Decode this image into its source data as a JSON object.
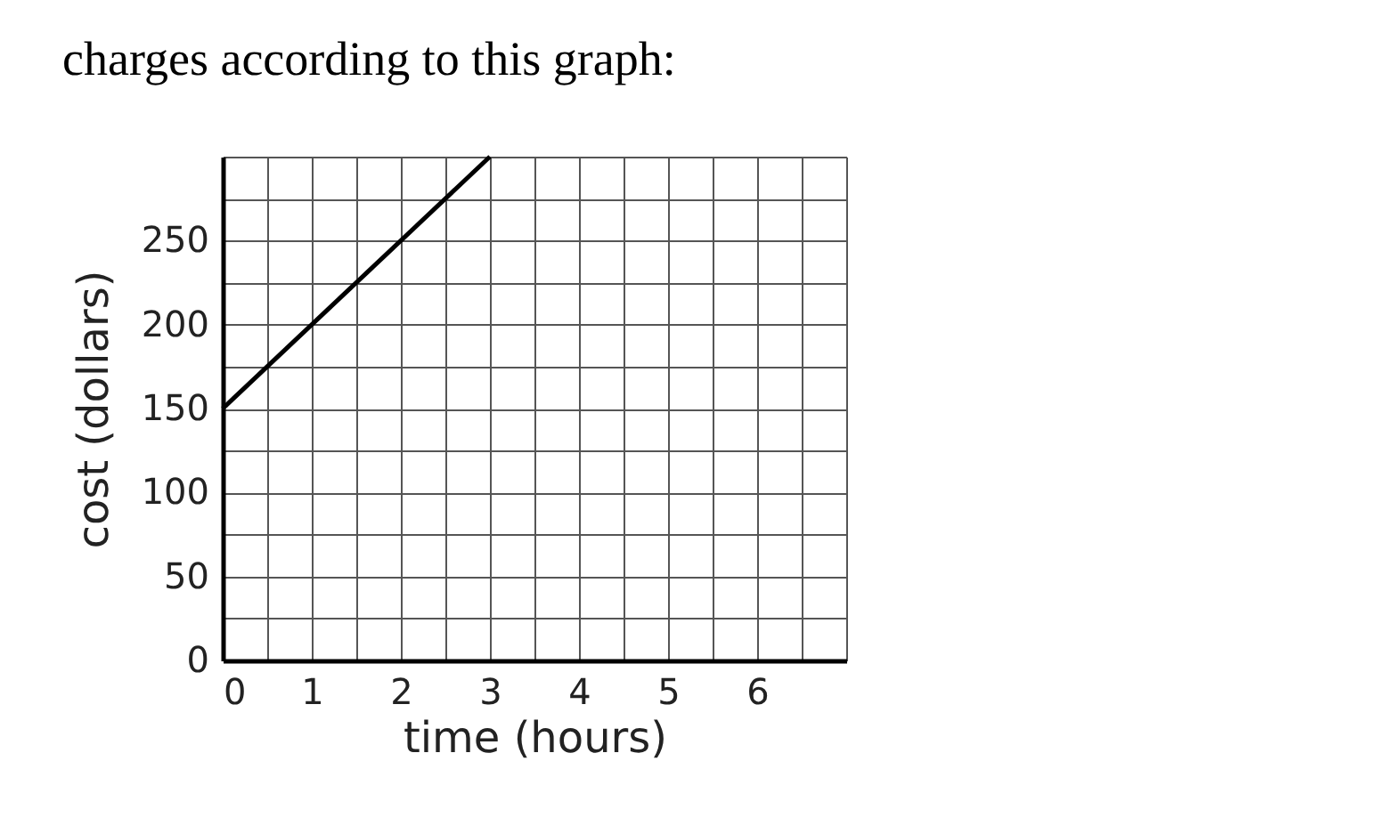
{
  "chart_data": {
    "type": "line",
    "title": "charges according to this graph:",
    "xlabel": "time (hours)",
    "ylabel": "cost (dollars)",
    "x": [
      0,
      3
    ],
    "values": [
      150,
      300
    ],
    "color": "#000000",
    "xlim": [
      0,
      7
    ],
    "ylim": [
      0,
      300
    ],
    "xticks": [
      0,
      {
        "value": 0.5,
        "label": null
      },
      1,
      {
        "value": 1.5,
        "label": null
      },
      2,
      {
        "value": 2.5,
        "label": null
      },
      3,
      {
        "value": 3.5,
        "label": null
      },
      4,
      {
        "value": 4.5,
        "label": null
      },
      5,
      {
        "value": 5.5,
        "label": null
      },
      6,
      {
        "value": 6.5,
        "label": null
      },
      {
        "value": 7,
        "label": null
      }
    ],
    "yticks": [
      0,
      {
        "value": 25,
        "label": null
      },
      50,
      {
        "value": 75,
        "label": null
      },
      100,
      {
        "value": 125,
        "label": null
      },
      150,
      {
        "value": 175,
        "label": null
      },
      200,
      {
        "value": 225,
        "label": null
      },
      250,
      {
        "value": 275,
        "label": null
      },
      {
        "value": 300,
        "label": null
      }
    ],
    "grid": true,
    "marker": "none",
    "line_style": "solid"
  }
}
